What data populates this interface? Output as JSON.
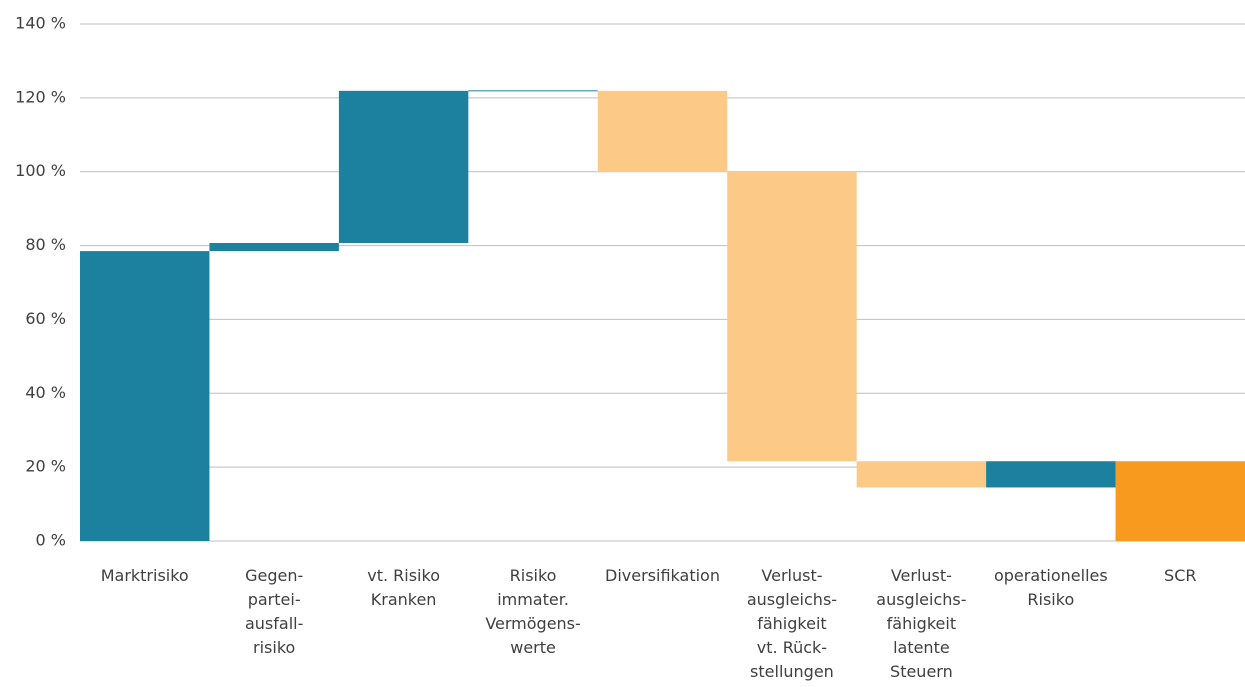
{
  "chart_data": {
    "type": "waterfall",
    "categories": [
      [
        "Marktrisiko"
      ],
      [
        "Gegen-",
        "partei-",
        "ausfall-",
        "risiko"
      ],
      [
        "vt. Risiko",
        "Kranken"
      ],
      [
        "Risiko",
        "immater.",
        "Vermögens-",
        "werte"
      ],
      [
        "Diversifikation"
      ],
      [
        "Verlust-",
        "ausgleichs-",
        "fähigkeit",
        "vt. Rück-",
        "stellungen"
      ],
      [
        "Verlust-",
        "ausgleichs-",
        "fähigkeit",
        "latente",
        "Steuern"
      ],
      [
        "operationelles",
        "Risiko"
      ],
      [
        "SCR"
      ]
    ],
    "values": [
      78.5,
      2.2,
      41.2,
      0,
      -22,
      -78.3,
      -7.1,
      7.1,
      21.6
    ],
    "colors": [
      "#1b819f",
      "#1b819f",
      "#1b819f",
      "#1b819f",
      "#fdc986",
      "#fdc986",
      "#fdc986",
      "#1b819f",
      "#f79a1e"
    ],
    "totals": [
      8
    ],
    "ylim": [
      0,
      140
    ],
    "yticks": [
      {
        "value": 0,
        "label": "0 %"
      },
      {
        "value": 20,
        "label": "20 %"
      },
      {
        "value": 40,
        "label": "40 %"
      },
      {
        "value": 60,
        "label": "60 %"
      },
      {
        "value": 80,
        "label": "80 %"
      },
      {
        "value": 100,
        "label": "100 %"
      },
      {
        "value": 120,
        "label": "120 %"
      },
      {
        "value": 140,
        "label": "140 %"
      }
    ],
    "grid": true
  }
}
